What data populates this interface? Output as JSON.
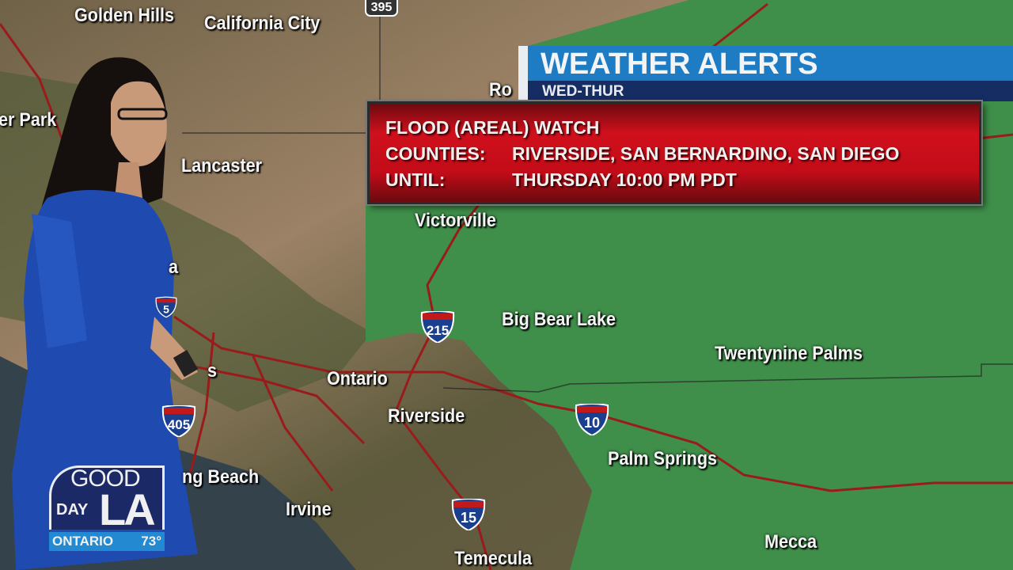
{
  "header": {
    "title": "WEATHER ALERTS",
    "subtitle": "WED-THUR"
  },
  "alert": {
    "type": "FLOOD (AREAL) WATCH",
    "counties_label": "COUNTIES:",
    "counties": "RIVERSIDE, SAN BERNARDINO, SAN DIEGO",
    "until_label": "UNTIL:",
    "until": "THURSDAY 10:00 PM PDT"
  },
  "map": {
    "cities": [
      "Golden Hills",
      "California City",
      "er Park",
      "Lancaster",
      "Victorville",
      "Big Bear Lake",
      "Twentynine Palms",
      "Ontario",
      "Riverside",
      "Palm Springs",
      "ng Beach",
      "Irvine",
      "Mecca",
      "Temecula",
      "a",
      "s",
      "Ro"
    ],
    "interstates": [
      "215",
      "10",
      "405",
      "15",
      "5",
      "395"
    ],
    "watch_area_color": "#3f8f4a",
    "terrain_color": "#7a6a50",
    "highway_color": "#9a1b1b"
  },
  "logo": {
    "line1": "GOOD",
    "line2": "DAY",
    "line3": "LA",
    "location": "ONTARIO",
    "temperature": "73°"
  },
  "colors": {
    "header_blue": "#1e7cc4",
    "header_navy": "#152d63",
    "alert_red": "#c20c18"
  }
}
